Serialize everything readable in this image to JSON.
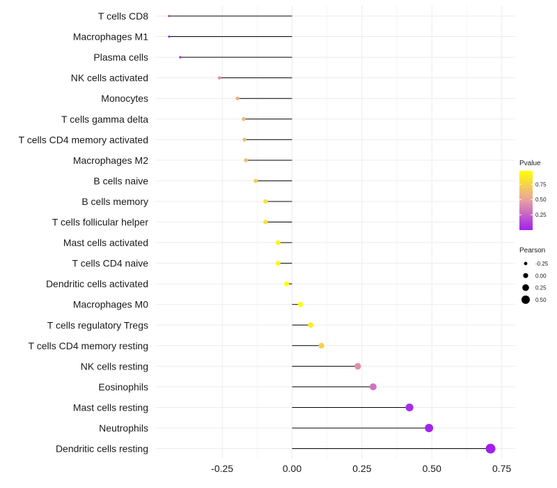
{
  "chart_data": {
    "type": "lollipop",
    "title": "",
    "xlabel": "",
    "ylabel": "",
    "xlim": [
      -0.5,
      0.78
    ],
    "x_ticks": [
      -0.25,
      0.0,
      0.25,
      0.5,
      0.75
    ],
    "x_tick_labels": [
      "-0.25",
      "0.00",
      "0.25",
      "0.50",
      "0.75"
    ],
    "grid": true,
    "categories": [
      "T cells CD8",
      "Macrophages M1",
      "Plasma cells",
      "NK cells activated",
      "Monocytes",
      "T cells gamma delta",
      "T cells CD4 memory activated",
      "Macrophages M2",
      "B cells naive",
      "B cells memory",
      "T cells follicular helper",
      "Mast cells activated",
      "T cells CD4 naive",
      "Dendritic cells activated",
      "Macrophages M0",
      "T cells regulatory  Tregs",
      "T cells CD4 memory resting",
      "NK cells resting",
      "Eosinophils",
      "Mast cells resting",
      "Neutrophils",
      "Dendritic cells resting"
    ],
    "pearson": [
      -0.44,
      -0.44,
      -0.4,
      -0.26,
      -0.195,
      -0.173,
      -0.17,
      -0.165,
      -0.13,
      -0.095,
      -0.095,
      -0.05,
      -0.05,
      -0.02,
      0.03,
      0.067,
      0.105,
      0.235,
      0.29,
      0.42,
      0.49,
      0.71
    ],
    "pvalue": [
      0.01,
      0.01,
      0.06,
      0.45,
      0.55,
      0.62,
      0.62,
      0.64,
      0.72,
      0.82,
      0.82,
      0.92,
      0.92,
      0.97,
      0.96,
      0.88,
      0.73,
      0.42,
      0.32,
      0.05,
      0.02,
      0.0
    ],
    "legend_color": {
      "title": "Pvalue",
      "ticks": [
        0.25,
        0.5,
        0.75
      ],
      "tick_labels": [
        "0.25",
        "0.50",
        "0.75"
      ],
      "range": [
        0.0,
        0.97
      ],
      "low_color": "#a020f0",
      "mid_color": "#e8a0a0",
      "high_color": "#ffff00",
      "placement": "right"
    },
    "legend_size": {
      "title": "Pearson",
      "values": [
        -0.25,
        0.0,
        0.25,
        0.5
      ],
      "labels": [
        "-0.25",
        "0.00",
        "0.25",
        "0.50"
      ],
      "color": "#000000",
      "placement": "right"
    }
  }
}
